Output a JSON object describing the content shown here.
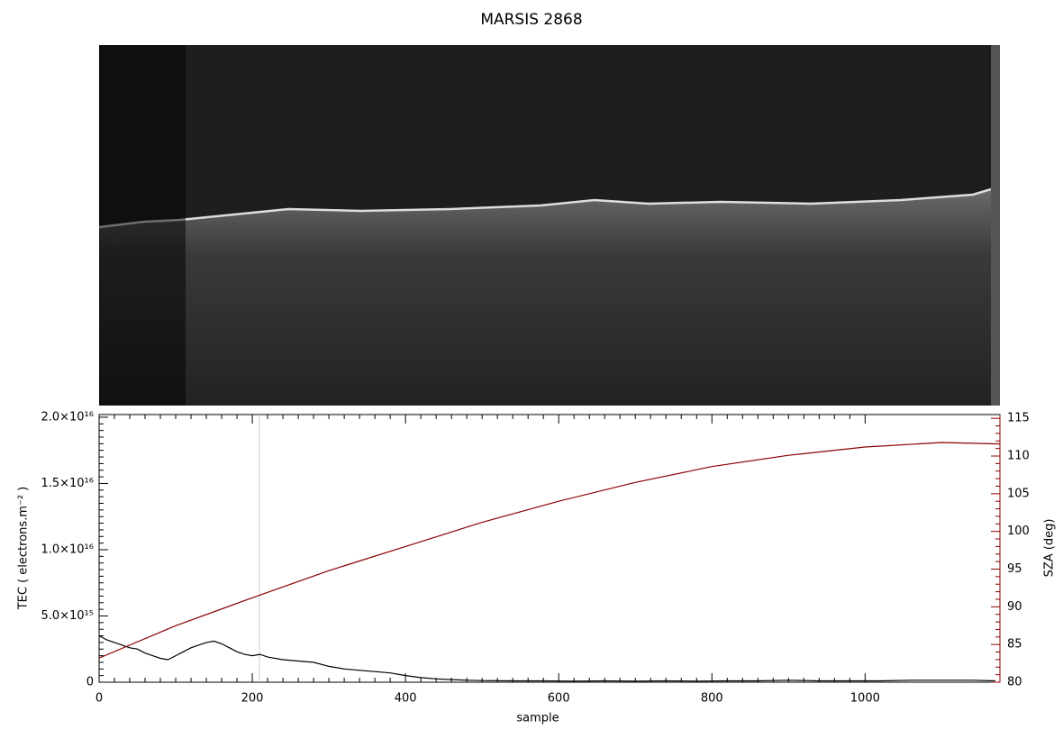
{
  "chart_data": {
    "type": "line",
    "title": "MARSIS 2868",
    "xlabel": "sample",
    "ylabel": "TEC ( electrons.m⁻² )",
    "y2label": "SZA (deg)",
    "y2color": "#8b0000",
    "xlim": [
      0,
      1176
    ],
    "xticks": [
      0,
      200,
      400,
      600,
      800,
      1000
    ],
    "ylim": [
      0,
      2.02e+16
    ],
    "yticks": [
      0,
      {
        "value": 5000000000000000.0,
        "label": "5.0×10¹⁵"
      },
      {
        "value": 1e+16,
        "label": "1.0×10¹⁶"
      },
      {
        "value": 1.5e+16,
        "label": "1.5×10¹⁶"
      },
      {
        "value": 2e+16,
        "label": "2.0×10¹⁶"
      }
    ],
    "y2lim": [
      80,
      115.5
    ],
    "y2ticks": [
      80,
      85,
      90,
      95,
      100,
      105,
      110,
      115
    ],
    "series": [
      {
        "color": "#000000",
        "x": [
          0,
          10,
          20,
          30,
          40,
          50,
          60,
          70,
          80,
          90,
          100,
          110,
          120,
          130,
          140,
          150,
          160,
          170,
          180,
          190,
          200,
          210,
          220,
          240,
          260,
          280,
          300,
          320,
          340,
          360,
          380,
          400,
          420,
          440,
          460,
          480,
          500,
          540,
          580,
          620,
          660,
          700,
          740,
          780,
          820,
          860,
          900,
          940,
          980,
          1020,
          1060,
          1100,
          1140,
          1170
        ],
        "values": [
          3500000000000000.0,
          3200000000000000.0,
          3000000000000000.0,
          2800000000000000.0,
          2600000000000000.0,
          2500000000000000.0,
          2200000000000000.0,
          2000000000000000.0,
          1800000000000000.0,
          1700000000000000.0,
          2000000000000000.0,
          2300000000000000.0,
          2600000000000000.0,
          2800000000000000.0,
          3000000000000000.0,
          3100000000000000.0,
          2900000000000000.0,
          2600000000000000.0,
          2300000000000000.0,
          2100000000000000.0,
          2000000000000000.0,
          2100000000000000.0,
          1900000000000000.0,
          1700000000000000.0,
          1600000000000000.0,
          1500000000000000.0,
          1200000000000000.0,
          1000000000000000.0,
          900000000000000.0,
          800000000000000.0,
          700000000000000.0,
          500000000000000.0,
          350000000000000.0,
          250000000000000.0,
          200000000000000.0,
          150000000000000.0,
          120000000000000.0,
          100000000000000.0,
          100000000000000.0,
          80000000000000.0,
          100000000000000.0,
          80000000000000.0,
          100000000000000.0,
          80000000000000.0,
          100000000000000.0,
          100000000000000.0,
          150000000000000.0,
          100000000000000.0,
          100000000000000.0,
          100000000000000.0,
          150000000000000.0,
          150000000000000.0,
          150000000000000.0,
          100000000000000.0
        ]
      },
      {
        "color": "#8b0000",
        "axis": "y2",
        "x": [
          0,
          100,
          200,
          300,
          400,
          500,
          600,
          700,
          800,
          900,
          1000,
          1100,
          1176
        ],
        "values": [
          83.2,
          87.5,
          91.2,
          94.8,
          98,
          101.2,
          104,
          106.5,
          108.6,
          110.1,
          111.2,
          111.8,
          111.6
        ]
      }
    ]
  }
}
